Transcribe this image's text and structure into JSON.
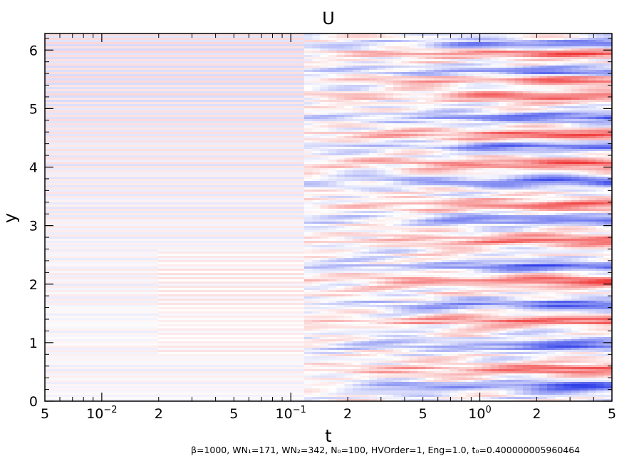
{
  "chart_data": {
    "type": "heatmap",
    "title": "U",
    "xlabel": "t",
    "ylabel": "y",
    "xscale": "log",
    "xlim": [
      0.005,
      5
    ],
    "ylim": [
      0,
      6.2832
    ],
    "x_ticks": [
      {
        "value": 0.005,
        "label": "5"
      },
      {
        "value": 0.01,
        "label": "10",
        "exp": "−2"
      },
      {
        "value": 0.02,
        "label": "2"
      },
      {
        "value": 0.05,
        "label": "5"
      },
      {
        "value": 0.1,
        "label": "10",
        "exp": "−1"
      },
      {
        "value": 0.2,
        "label": "2"
      },
      {
        "value": 0.5,
        "label": "5"
      },
      {
        "value": 1,
        "label": "10",
        "exp": "0"
      },
      {
        "value": 2,
        "label": "2"
      },
      {
        "value": 5,
        "label": "5"
      }
    ],
    "y_ticks": [
      "0",
      "1",
      "2",
      "3",
      "4",
      "5",
      "6"
    ],
    "colormap": {
      "negative": "#3040e8",
      "zero": "#ffffff",
      "positive": "#f03838"
    },
    "band_y_values": [
      0.25,
      0.55,
      0.95,
      1.38,
      1.65,
      2.05,
      2.3,
      2.75,
      3.1,
      3.35,
      3.75,
      4.05,
      4.35,
      4.55,
      4.85,
      5.2,
      5.5,
      5.62,
      5.95,
      6.1
    ],
    "band_signs": [
      -1,
      1,
      -1,
      1,
      -1,
      1,
      -1,
      1,
      -1,
      1,
      -1,
      1,
      -1,
      1,
      -1,
      1,
      1,
      -1,
      1,
      -1
    ],
    "footnote": "β=1000, WN₁=171, WN₂=342, N₀=100, HVOrder=1, Eng=1.0, t₀=0.400000005960464"
  }
}
